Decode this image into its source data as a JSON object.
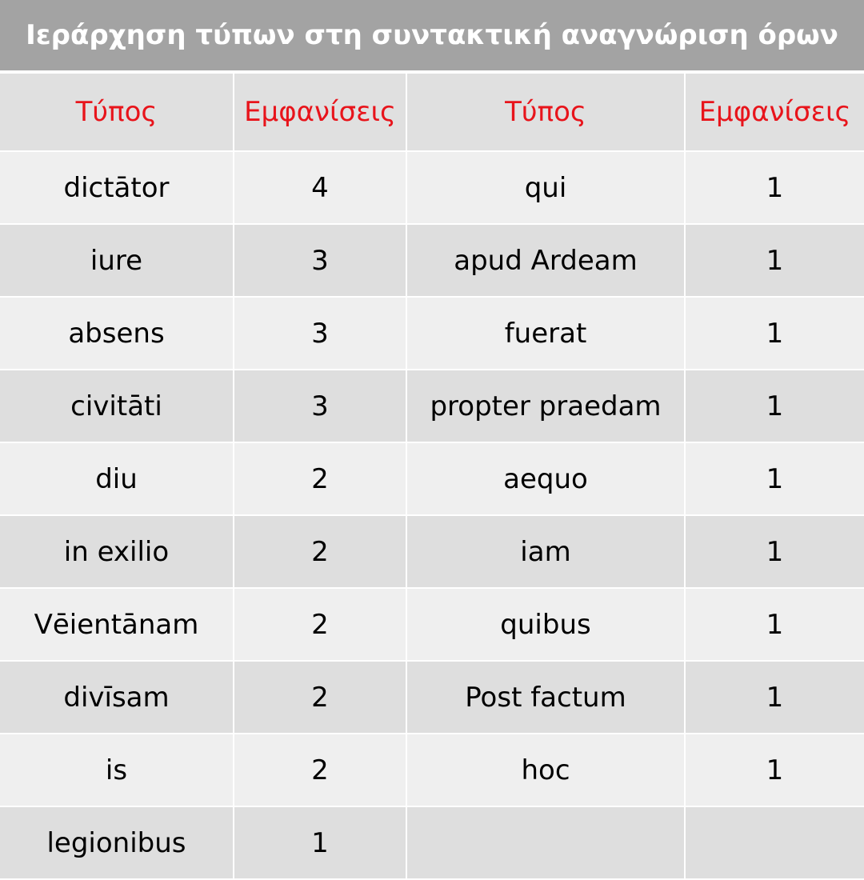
{
  "title": "Ιεράρχηση τύπων στη συντακτική αναγνώριση όρων",
  "table": {
    "header": [
      "Τύπος",
      "Εμφανίσεις",
      "Τύπος",
      "Εμφανίσεις"
    ],
    "rows": [
      [
        "dictātor",
        4,
        "qui",
        1
      ],
      [
        "iure",
        3,
        "apud Ardeam",
        1
      ],
      [
        "absens",
        3,
        "fuerat",
        1
      ],
      [
        "civitāti",
        3,
        "propter praedam",
        1
      ],
      [
        "diu",
        2,
        "aequo",
        1
      ],
      [
        "in exilio",
        2,
        "iam",
        1
      ],
      [
        "Vēientānam",
        2,
        "quibus",
        1
      ],
      [
        "divīsam",
        2,
        "Post factum",
        1
      ],
      [
        "is",
        2,
        "hoc",
        1
      ],
      [
        "legionibus",
        1
      ]
    ]
  }
}
